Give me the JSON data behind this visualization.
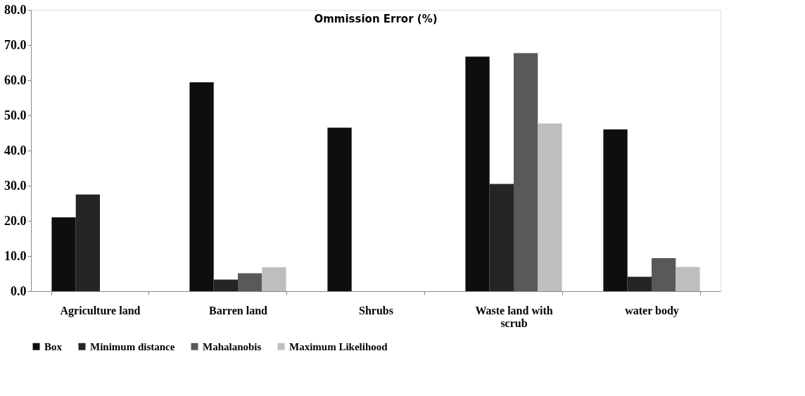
{
  "chart_data": {
    "type": "bar",
    "title": "Ommission Error (%)",
    "categories": [
      "Agriculture land",
      "Barren land",
      "Shrubs",
      "Waste land with scrub",
      "water body"
    ],
    "series": [
      {
        "name": "Box",
        "color": "#0e0e0e",
        "values": [
          21.0,
          59.4,
          46.5,
          66.7,
          46.0
        ]
      },
      {
        "name": "Minimum distance",
        "color": "#252525",
        "values": [
          27.5,
          3.3,
          0,
          30.5,
          4.1
        ]
      },
      {
        "name": "Mahalanobis",
        "color": "#595959",
        "values": [
          0,
          5.1,
          0,
          67.7,
          9.4
        ]
      },
      {
        "name": "Maximum Likelihood",
        "color": "#bebebe",
        "values": [
          0,
          6.8,
          0,
          47.7,
          6.9
        ]
      }
    ],
    "ylim": [
      0,
      80
    ],
    "yticks": [
      {
        "value": 0,
        "label": "0.0"
      },
      {
        "value": 10,
        "label": "10.0"
      },
      {
        "value": 20,
        "label": "20.0"
      },
      {
        "value": 30,
        "label": "30.0"
      },
      {
        "value": 40,
        "label": "40.0"
      },
      {
        "value": 50,
        "label": "50.0"
      },
      {
        "value": 60,
        "label": "60.0"
      },
      {
        "value": 70,
        "label": "70.0"
      },
      {
        "value": 80,
        "label": "80.0"
      }
    ],
    "grid": false,
    "legend": "bottom"
  }
}
